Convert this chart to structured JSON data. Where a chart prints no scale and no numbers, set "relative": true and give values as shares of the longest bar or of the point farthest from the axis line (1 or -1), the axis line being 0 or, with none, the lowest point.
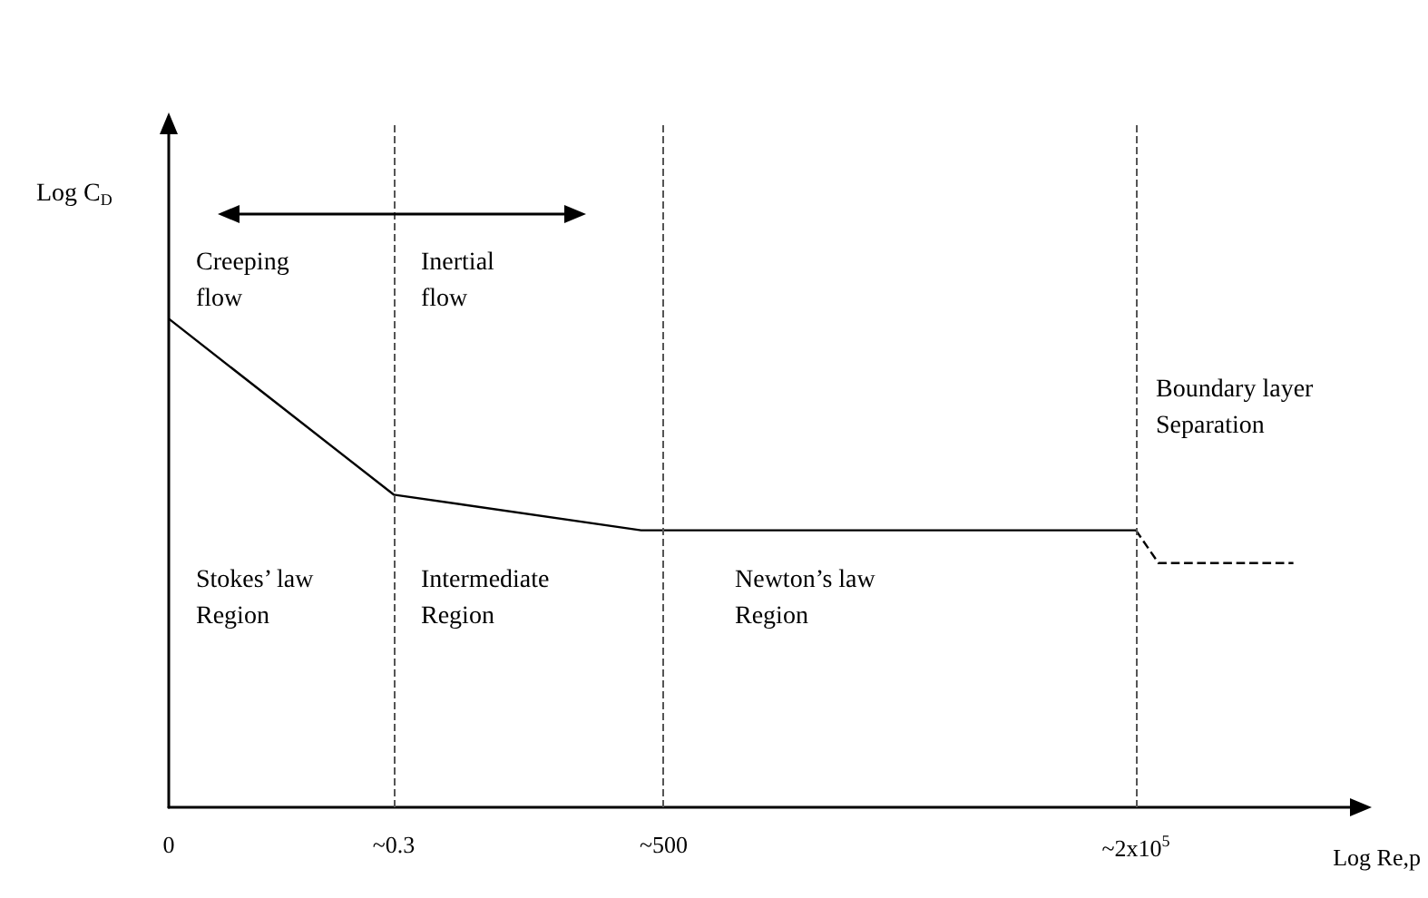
{
  "chart_data": {
    "type": "line",
    "relative": true,
    "xlabel": "Log Re,p",
    "ylabel": "Log C$_{D}$",
    "categories": [
      "0",
      null,
      null,
      null,
      null,
      null,
      null,
      null,
      null,
      null,
      "~0.3",
      null,
      null,
      null,
      null,
      null,
      null,
      null,
      null,
      null,
      null,
      null,
      "~500",
      null,
      null,
      null,
      null,
      null,
      null,
      null,
      null,
      null,
      null,
      null,
      null,
      null,
      null,
      null,
      null,
      null,
      null,
      null,
      null,
      "~2x10$^{5}$",
      null,
      null,
      null,
      null,
      null,
      null,
      null,
      null,
      null
    ],
    "series": [
      {
        "values": [
          1,
          null,
          null,
          null,
          null,
          null,
          null,
          null,
          null,
          null,
          0.64,
          null,
          null,
          null,
          null,
          null,
          null,
          null,
          null,
          null,
          null,
          0.567,
          null,
          null,
          null,
          null,
          null,
          null,
          null,
          null,
          null,
          null,
          null,
          null,
          null,
          null,
          null,
          null,
          null,
          null,
          null,
          null,
          null,
          0.567,
          null,
          null,
          null,
          null,
          null,
          null,
          null,
          null,
          null
        ],
        "color": "#000000",
        "line_style": "solid"
      },
      {
        "values": [
          null,
          null,
          null,
          null,
          null,
          null,
          null,
          null,
          null,
          null,
          null,
          null,
          null,
          null,
          null,
          null,
          null,
          null,
          null,
          null,
          null,
          null,
          null,
          null,
          null,
          null,
          null,
          null,
          null,
          null,
          null,
          null,
          null,
          null,
          null,
          null,
          null,
          null,
          null,
          null,
          null,
          null,
          null,
          0.567,
          0.5,
          null,
          null,
          null,
          null,
          null,
          0.5,
          null,
          null
        ],
        "color": "#000000",
        "line_style": "dashed"
      }
    ],
    "ref_lines": [
      {
        "axis": "x",
        "value": "~0.3",
        "color": "#555555",
        "line_style": "dashed"
      },
      {
        "axis": "x",
        "value": "~500",
        "color": "#555555",
        "line_style": "dashed"
      },
      {
        "axis": "x",
        "value": "~2x10$^{5}$",
        "color": "#555555",
        "line_style": "dashed"
      }
    ],
    "annotations": [
      "Creeping\nflow",
      "Inertial\nflow",
      "Stokes’ law\nRegion",
      "Intermediate\nRegion",
      "Newton’s law\nRegion",
      "Boundary layer\nSeparation"
    ],
    "marker": "none",
    "grid": false
  }
}
